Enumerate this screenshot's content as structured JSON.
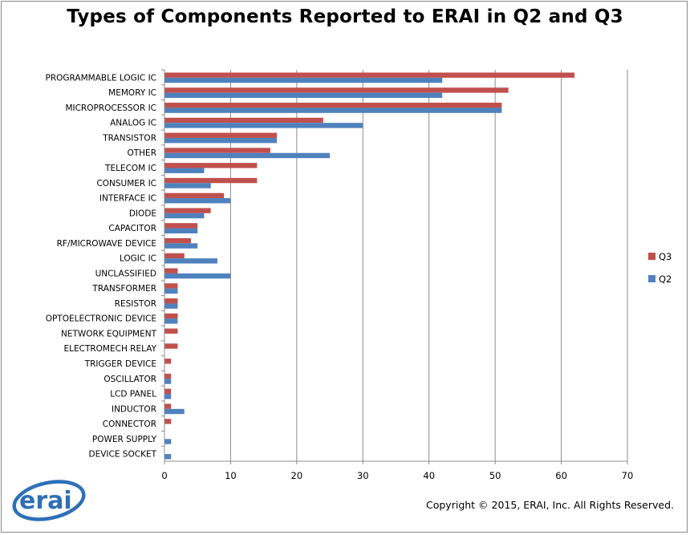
{
  "chart_data": {
    "type": "bar",
    "orientation": "horizontal",
    "title": "Types of Components Reported to ERAI in Q2 and Q3",
    "categories": [
      "PROGRAMMABLE LOGIC IC",
      "MEMORY IC",
      "MICROPROCESSOR IC",
      "ANALOG IC",
      "TRANSISTOR",
      "OTHER",
      "TELECOM IC",
      "CONSUMER IC",
      "INTERFACE IC",
      "DIODE",
      "CAPACITOR",
      "RF/MICROWAVE DEVICE",
      "LOGIC IC",
      "UNCLASSIFIED",
      "TRANSFORMER",
      "RESISTOR",
      "OPTOELECTRONIC DEVICE",
      "NETWORK EQUIPMENT",
      "ELECTROMECH RELAY",
      "TRIGGER DEVICE",
      "OSCILLATOR",
      "LCD PANEL",
      "INDUCTOR",
      "CONNECTOR",
      "POWER SUPPLY",
      "DEVICE SOCKET"
    ],
    "series": [
      {
        "name": "Q3",
        "color": "#c0504d",
        "values": [
          62,
          52,
          51,
          24,
          17,
          16,
          14,
          14,
          9,
          7,
          5,
          4,
          3,
          2,
          2,
          2,
          2,
          2,
          2,
          1,
          1,
          1,
          1,
          1,
          0,
          0
        ]
      },
      {
        "name": "Q2",
        "color": "#4f81bd",
        "values": [
          42,
          42,
          51,
          30,
          17,
          25,
          6,
          7,
          10,
          6,
          5,
          5,
          8,
          10,
          2,
          2,
          2,
          0,
          0,
          0,
          1,
          1,
          3,
          0,
          1,
          1
        ]
      }
    ],
    "xlim": [
      0,
      70
    ],
    "xticks": [
      0,
      10,
      20,
      30,
      40,
      50,
      60,
      70
    ],
    "grid": true,
    "legend_position": "right"
  },
  "copyright": "Copyright © 2015, ERAI, Inc.  All Rights Reserved.",
  "logo_text": "erai"
}
